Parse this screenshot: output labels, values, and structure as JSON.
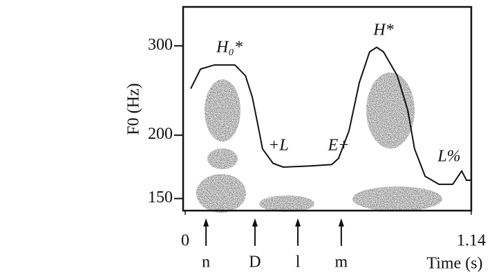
{
  "chart_data": {
    "type": "line",
    "y_label": "F0 (Hz)",
    "x_label": "Time (s)",
    "log_y": true,
    "xlim": [
      0,
      1.14
    ],
    "xticks": [
      0,
      1.14
    ],
    "ylim": [
      142,
      358
    ],
    "yticks": [
      150,
      200,
      300
    ],
    "color": "#111111",
    "x": [
      0.022,
      0.061,
      0.116,
      0.198,
      0.24,
      0.267,
      0.286,
      0.308,
      0.35,
      0.391,
      0.501,
      0.584,
      0.611,
      0.653,
      0.694,
      0.735,
      0.763,
      0.79,
      0.845,
      0.887,
      0.914,
      0.956,
      1.011,
      1.066,
      1.102,
      1.121,
      1.14
    ],
    "values": [
      247,
      270,
      275,
      275,
      262,
      238,
      214,
      188,
      176,
      173,
      174,
      175,
      180,
      204,
      254,
      292,
      298,
      292,
      262,
      224,
      188,
      166,
      160,
      160,
      170,
      163,
      163
    ],
    "annotations": [
      "H₀*",
      "+L",
      "E+",
      "H*",
      "L%"
    ],
    "segments": [
      {
        "label": "n",
        "time": 0.083
      },
      {
        "label": "D",
        "time": 0.278
      },
      {
        "label": "l",
        "time": 0.449
      },
      {
        "label": "m",
        "time": 0.622
      }
    ]
  }
}
